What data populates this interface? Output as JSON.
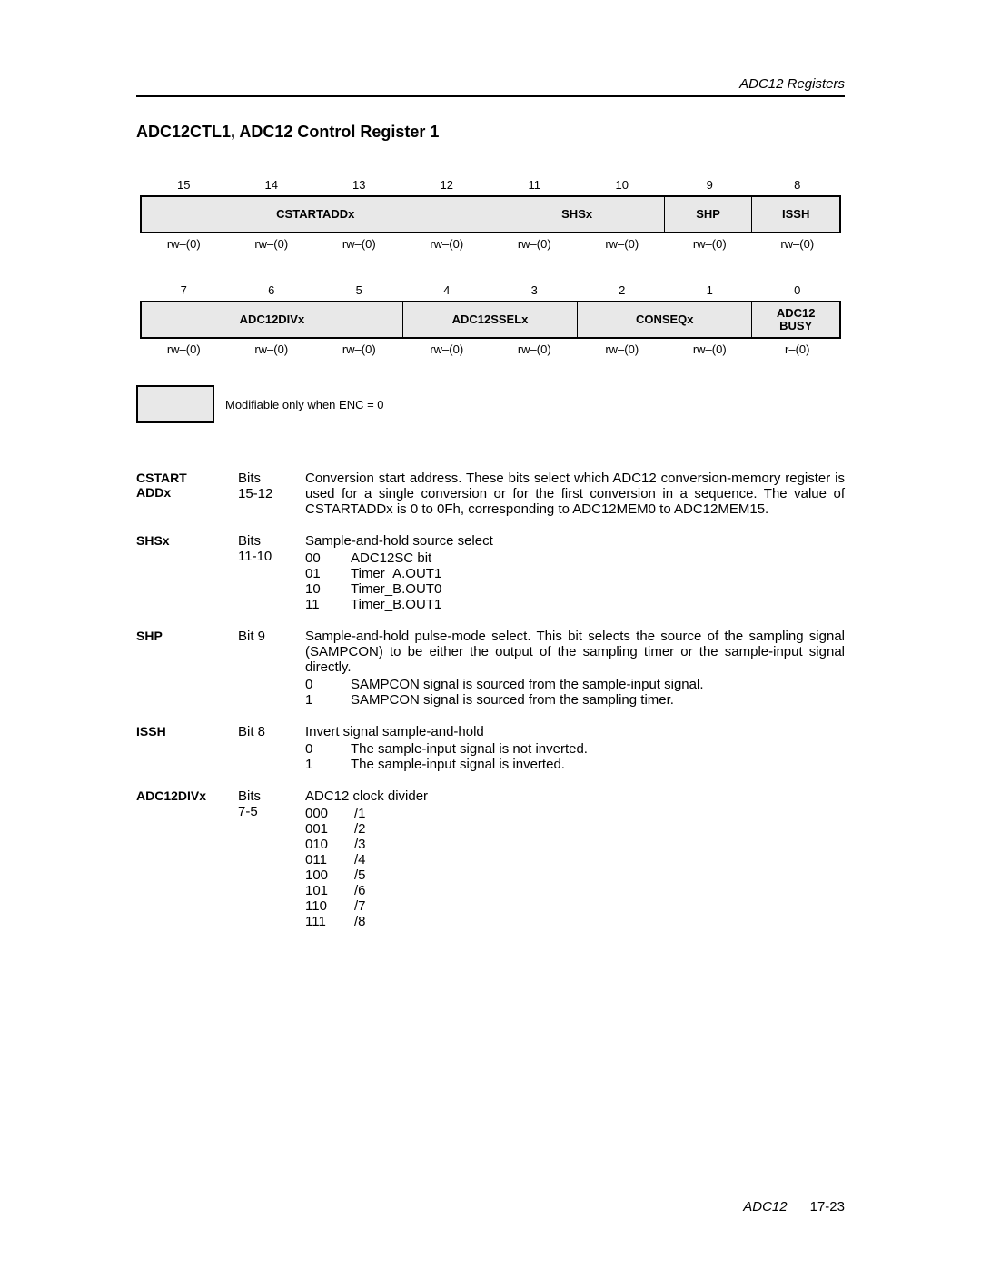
{
  "header": {
    "section": "ADC12 Registers"
  },
  "title": "ADC12CTL1, ADC12 Control Register 1",
  "regHigh": {
    "bits": [
      "15",
      "14",
      "13",
      "12",
      "11",
      "10",
      "9",
      "8"
    ],
    "fields": [
      {
        "label": "CSTARTADDx",
        "span": 4
      },
      {
        "label": "SHSx",
        "span": 2
      },
      {
        "label": "SHP",
        "span": 1
      },
      {
        "label": "ISSH",
        "span": 1
      }
    ],
    "rw": [
      "rw–(0)",
      "rw–(0)",
      "rw–(0)",
      "rw–(0)",
      "rw–(0)",
      "rw–(0)",
      "rw–(0)",
      "rw–(0)"
    ]
  },
  "regLow": {
    "bits": [
      "7",
      "6",
      "5",
      "4",
      "3",
      "2",
      "1",
      "0"
    ],
    "fields": [
      {
        "label": "ADC12DIVx",
        "span": 3
      },
      {
        "label": "ADC12SSELx",
        "span": 2
      },
      {
        "label": "CONSEQx",
        "span": 2
      },
      {
        "label": "ADC12\nBUSY",
        "span": 1
      }
    ],
    "rw": [
      "rw–(0)",
      "rw–(0)",
      "rw–(0)",
      "rw–(0)",
      "rw–(0)",
      "rw–(0)",
      "rw–(0)",
      "r–(0)"
    ]
  },
  "legend": "Modifiable only when ENC = 0",
  "descriptions": [
    {
      "name": "CSTART\nADDx",
      "bits": "Bits\n15-12",
      "text": "Conversion start address. These bits select which ADC12 conversion-memory register is used for a single conversion or for the first conversion in a sequence. The value of CSTARTADDx is 0 to 0Fh, corresponding to ADC12MEM0 to ADC12MEM15.",
      "justify": true
    },
    {
      "name": "SHSx",
      "bits": "Bits\n11-10",
      "text": "Sample-and-hold source select",
      "options": [
        {
          "code": "00",
          "val": "ADC12SC bit"
        },
        {
          "code": "01",
          "val": "Timer_A.OUT1"
        },
        {
          "code": "10",
          "val": "Timer_B.OUT0"
        },
        {
          "code": "11",
          "val": "Timer_B.OUT1"
        }
      ]
    },
    {
      "name": "SHP",
      "bits": "Bit 9",
      "text": "Sample-and-hold pulse-mode select. This bit selects the source of the sampling signal (SAMPCON) to be either the output of the sampling timer or the sample-input signal directly.",
      "justify": true,
      "options": [
        {
          "code": "0",
          "val": "SAMPCON signal is sourced from the sample-input signal."
        },
        {
          "code": "1",
          "val": "SAMPCON signal is sourced from the sampling timer."
        }
      ]
    },
    {
      "name": "ISSH",
      "bits": "Bit 8",
      "text": "Invert signal sample-and-hold",
      "options": [
        {
          "code": "0",
          "val": "The sample-input signal is not inverted."
        },
        {
          "code": "1",
          "val": "The sample-input signal is inverted."
        }
      ]
    },
    {
      "name": "ADC12DIVx",
      "bits": "Bits\n7-5",
      "text": "ADC12 clock divider",
      "options": [
        {
          "code": "000",
          "val": "/1"
        },
        {
          "code": "001",
          "val": "/2"
        },
        {
          "code": "010",
          "val": "/3"
        },
        {
          "code": "011",
          "val": "/4"
        },
        {
          "code": "100",
          "val": "/5"
        },
        {
          "code": "101",
          "val": "/6"
        },
        {
          "code": "110",
          "val": "/7"
        },
        {
          "code": "111",
          "val": "/8"
        }
      ],
      "wide": true
    }
  ],
  "footer": {
    "chapter": "ADC12",
    "page": "17-23"
  }
}
